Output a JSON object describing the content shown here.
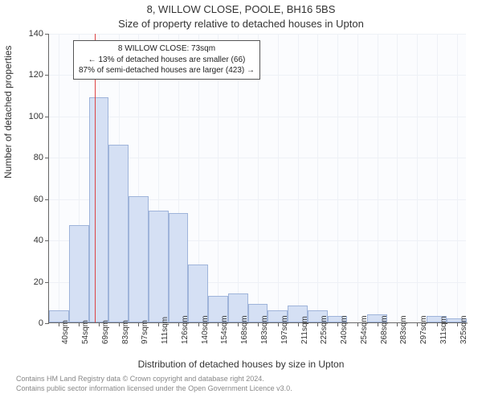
{
  "title": "8, WILLOW CLOSE, POOLE, BH16 5BS",
  "subtitle": "Size of property relative to detached houses in Upton",
  "chart": {
    "type": "histogram",
    "background_color": "#fbfcfe",
    "grid_color": "#eef1f6",
    "axis_color": "#666666",
    "bar_fill": "#d5e0f4",
    "bar_border": "#9fb4da",
    "reference_line_color": "#d44",
    "annotation_border": "#555555",
    "ylabel": "Number of detached properties",
    "xlabel": "Distribution of detached houses by size in Upton",
    "ylim": [
      0,
      140
    ],
    "ytick_step": 20,
    "x_categories": [
      "40sqm",
      "54sqm",
      "69sqm",
      "83sqm",
      "97sqm",
      "111sqm",
      "126sqm",
      "140sqm",
      "154sqm",
      "168sqm",
      "183sqm",
      "197sqm",
      "211sqm",
      "225sqm",
      "240sqm",
      "254sqm",
      "268sqm",
      "283sqm",
      "297sqm",
      "311sqm",
      "325sqm"
    ],
    "values": [
      6,
      47,
      109,
      86,
      61,
      54,
      53,
      28,
      13,
      14,
      9,
      6,
      8,
      6,
      3,
      0,
      4,
      0,
      0,
      3,
      2
    ],
    "reference_index": 2,
    "annotation": {
      "line1": "8 WILLOW CLOSE: 73sqm",
      "line2": "← 13% of detached houses are smaller (66)",
      "line3": "87% of semi-detached houses are larger (423) →"
    },
    "tick_fontsize": 11,
    "label_fontsize": 12,
    "title_fontsize": 13
  },
  "footer": {
    "line1": "Contains HM Land Registry data © Crown copyright and database right 2024.",
    "line2": "Contains public sector information licensed under the Open Government Licence v3.0."
  }
}
